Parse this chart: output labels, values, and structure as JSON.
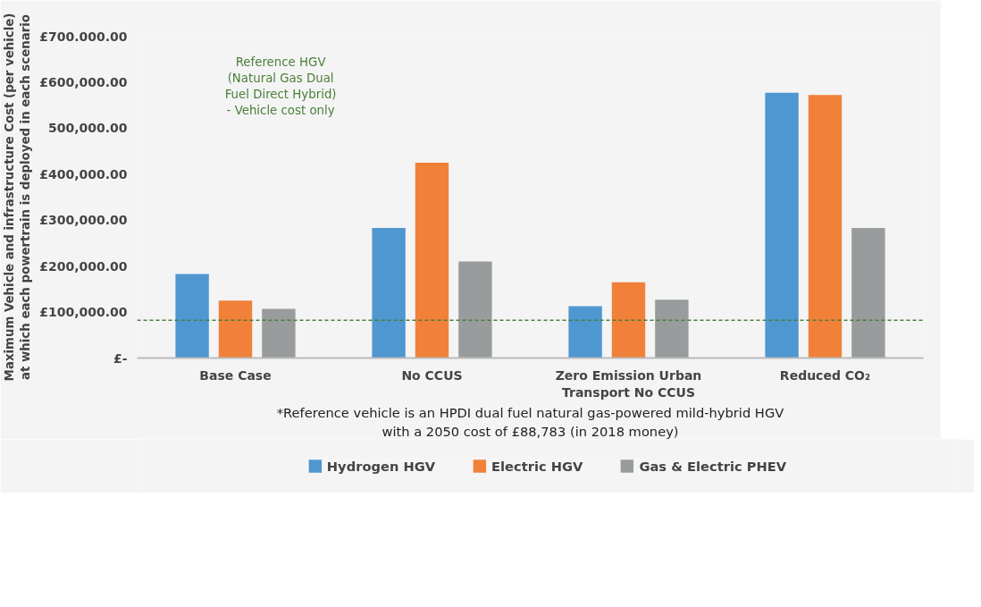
{
  "chart_data": {
    "type": "bar",
    "ylabel": "Maximum Vehicle and infrastructure Cost (per vehicle) at which each powertrain is deployed in each scenario",
    "categories": [
      "Base Case",
      "No CCUS",
      "Zero Emission Urban Transport No CCUS",
      "Reduced CO₂"
    ],
    "series": [
      {
        "name": "Hydrogen HGV",
        "color": "#4f97d1",
        "values": [
          183000,
          283000,
          113000,
          577000
        ]
      },
      {
        "name": "Electric HGV",
        "color": "#f18139",
        "values": [
          125000,
          425000,
          165000,
          572000
        ]
      },
      {
        "name": "Gas & Electric PHEV",
        "color": "#999c9c",
        "values": [
          107000,
          210000,
          127000,
          283000
        ]
      }
    ],
    "ylim": [
      0,
      700000
    ],
    "yticks": [
      {
        "value": 0,
        "label": "£-"
      },
      {
        "value": 100000,
        "label": "£100,000.00"
      },
      {
        "value": 200000,
        "label": "£200,000.00"
      },
      {
        "value": 300000,
        "label": "£300,000.00"
      },
      {
        "value": 400000,
        "label": "£400,000.00"
      },
      {
        "value": 500000,
        "label": "500,000.00"
      },
      {
        "value": 600000,
        "label": "£600,000.00"
      },
      {
        "value": 700000,
        "label": "£700.000.00"
      }
    ],
    "ref_lines": [
      {
        "axis": "y",
        "value": 82000,
        "label": "Reference HGV (Natural Gas Dual Fuel Direct Hybrid) - Vehicle cost only",
        "color": "#4a7f3a",
        "line_style": "dashed"
      }
    ],
    "annotations": [
      "*Reference vehicle is an HPDI dual fuel natural gas-powered mild-hybrid HGV with a 2050 cost of £88,783 (in 2018 money)"
    ],
    "grid": false,
    "legend": "bottom"
  }
}
